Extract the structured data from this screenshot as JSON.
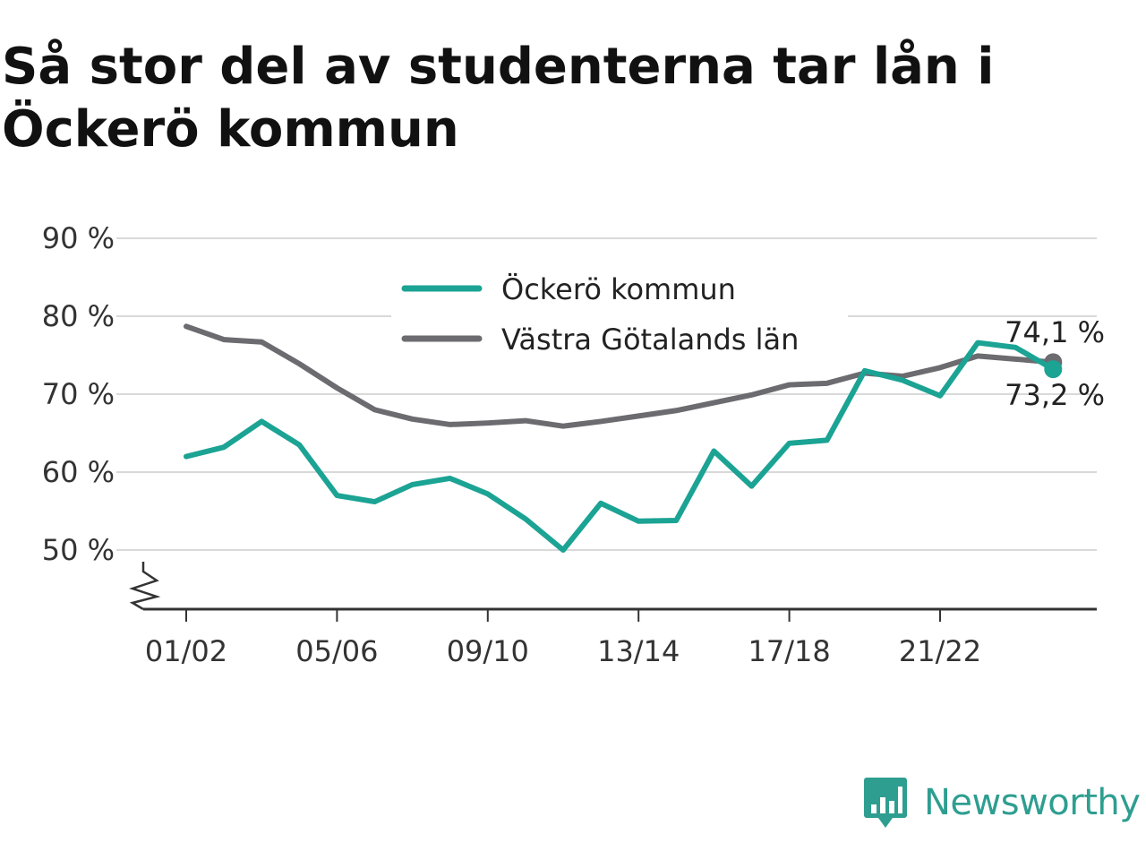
{
  "title": "Så stor del av studenterna tar lån i Öckerö kommun",
  "brand": {
    "name": "Newsworthy",
    "icon": "newsworthy-logo-icon",
    "color": "#2e9e90"
  },
  "chart_data": {
    "type": "line",
    "title": "Så stor del av studenterna tar lån i Öckerö kommun",
    "xlabel": "",
    "ylabel": "",
    "x": [
      "01/02",
      "02/03",
      "03/04",
      "04/05",
      "05/06",
      "06/07",
      "07/08",
      "08/09",
      "09/10",
      "10/11",
      "11/12",
      "12/13",
      "13/14",
      "14/15",
      "15/16",
      "16/17",
      "17/18",
      "18/19",
      "19/20",
      "20/21",
      "21/22",
      "22/23",
      "23/24",
      "24/25"
    ],
    "x_tick_labels": [
      "01/02",
      "05/06",
      "09/10",
      "13/14",
      "17/18",
      "21/22"
    ],
    "y_ticks": [
      50,
      60,
      70,
      80,
      90
    ],
    "y_tick_suffix": " %",
    "ylim": [
      42.5,
      90
    ],
    "y_axis_break": true,
    "grid": true,
    "legend": "top-center",
    "series": [
      {
        "name": "Öckerö kommun",
        "color": "#1ba394",
        "values": [
          62.0,
          63.2,
          66.5,
          63.5,
          57.0,
          56.2,
          58.4,
          59.2,
          57.2,
          54.0,
          50.0,
          56.0,
          53.7,
          53.8,
          62.7,
          58.2,
          63.7,
          64.1,
          73.0,
          71.8,
          69.8,
          76.6,
          76.0,
          73.2
        ]
      },
      {
        "name": "Västra Götalands län",
        "color": "#6b6b70",
        "values": [
          78.7,
          77.0,
          76.7,
          73.9,
          70.8,
          68.0,
          66.8,
          66.1,
          66.3,
          66.6,
          65.9,
          66.5,
          67.2,
          67.9,
          68.9,
          69.9,
          71.2,
          71.4,
          72.7,
          72.3,
          73.4,
          74.9,
          74.5,
          74.1
        ]
      }
    ],
    "end_labels": [
      "74,1 %",
      "73,2 %"
    ]
  }
}
